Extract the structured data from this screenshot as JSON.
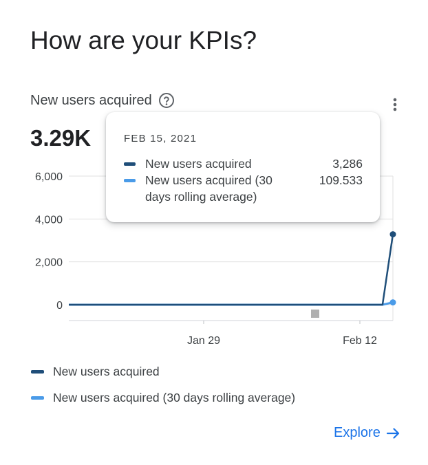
{
  "card": {
    "title": "How are your KPIs?",
    "metric_label": "New users acquired",
    "metric_value": "3.29K",
    "explore_label": "Explore"
  },
  "tooltip": {
    "date": "FEB 15, 2021",
    "rows": [
      {
        "label": "New users acquired",
        "value": "3,286",
        "color": "#1f4e79"
      },
      {
        "label": "New users acquired (30 days rolling average)",
        "value": "109.533",
        "color": "#4a9be8"
      }
    ]
  },
  "legend": [
    {
      "label": "New users acquired",
      "color": "#1f4e79"
    },
    {
      "label": "New users acquired (30 days rolling average)",
      "color": "#4a9be8"
    }
  ],
  "chart_data": {
    "type": "line",
    "y_ticks": [
      "6,000",
      "4,000",
      "2,000",
      "0"
    ],
    "x_ticks": [
      "Jan 29",
      "Feb 12"
    ],
    "ylim": [
      0,
      6000
    ],
    "series": [
      {
        "name": "New users acquired",
        "color": "#1f4e79",
        "points": [
          [
            0,
            0
          ],
          [
            0.968,
            0
          ],
          [
            1.0,
            3286
          ]
        ]
      },
      {
        "name": "New users acquired (30 days rolling average)",
        "color": "#4a9be8",
        "points": [
          [
            0,
            0
          ],
          [
            0.968,
            0
          ],
          [
            1.0,
            109.533
          ]
        ]
      }
    ]
  }
}
